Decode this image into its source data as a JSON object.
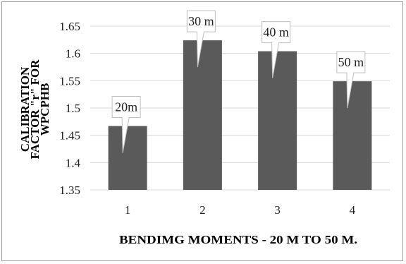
{
  "chart_data": {
    "type": "bar",
    "title": "",
    "xlabel": "BENDIMG MOMENTS - 20 M TO 50 M.",
    "ylabel_lines": [
      "CALIBRATION",
      "FACTOR \"r\" FOR",
      "WPCPHB"
    ],
    "categories": [
      "1",
      "2",
      "3",
      "4"
    ],
    "values": [
      1.467,
      1.624,
      1.604,
      1.549
    ],
    "data_labels": [
      "20m",
      "30 m",
      "40 m",
      "50 m"
    ],
    "ylim": [
      1.35,
      1.65
    ],
    "yticks": [
      "1.35",
      "1.4",
      "1.45",
      "1.5",
      "1.55",
      "1.6",
      "1.65"
    ],
    "grid": true,
    "bar_color": "#5a5a5a"
  }
}
